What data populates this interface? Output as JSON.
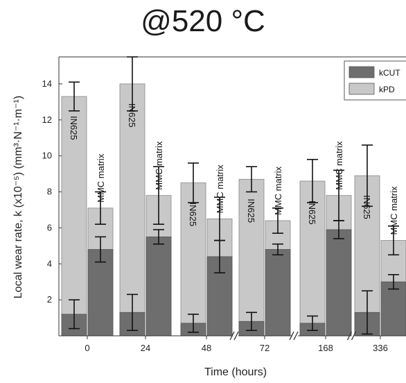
{
  "chart_data": {
    "type": "bar",
    "title": "@520 °C",
    "xlabel": "Time (hours)",
    "ylabel": "Local wear rate, k (x10⁻⁵) (mm³·N⁻¹·m⁻¹)",
    "ylim": [
      0,
      15.5
    ],
    "yticks": [
      2,
      4,
      6,
      8,
      10,
      12,
      14
    ],
    "categories": [
      "0",
      "24",
      "48",
      "72",
      "168",
      "336"
    ],
    "bar_groups": [
      "IN625",
      "MMC matrix"
    ],
    "series": [
      {
        "name": "kCUT",
        "color": "#6e6e6e",
        "IN625": [
          1.2,
          1.3,
          0.7,
          0.8,
          0.7,
          1.3
        ],
        "IN625_err": [
          0.8,
          1.0,
          0.5,
          0.5,
          0.4,
          1.2
        ],
        "MMC matrix": [
          4.8,
          5.5,
          4.4,
          4.8,
          5.9,
          3.0
        ],
        "MMC matrix_err": [
          0.7,
          0.4,
          0.9,
          0.3,
          0.5,
          0.4
        ]
      },
      {
        "name": "kPD",
        "color": "#c8c8c8",
        "IN625": [
          13.3,
          14.0,
          8.5,
          8.7,
          8.6,
          8.9
        ],
        "IN625_err": [
          0.8,
          1.5,
          1.1,
          0.7,
          1.2,
          1.7
        ],
        "MMC matrix": [
          7.1,
          7.8,
          6.5,
          6.4,
          7.8,
          5.3
        ],
        "MMC matrix_err": [
          0.9,
          1.6,
          1.2,
          0.7,
          1.4,
          0.8
        ]
      }
    ],
    "axis_breaks_after": [
      "48",
      "72",
      "168"
    ],
    "legend_position": "top-right",
    "grid": false
  }
}
